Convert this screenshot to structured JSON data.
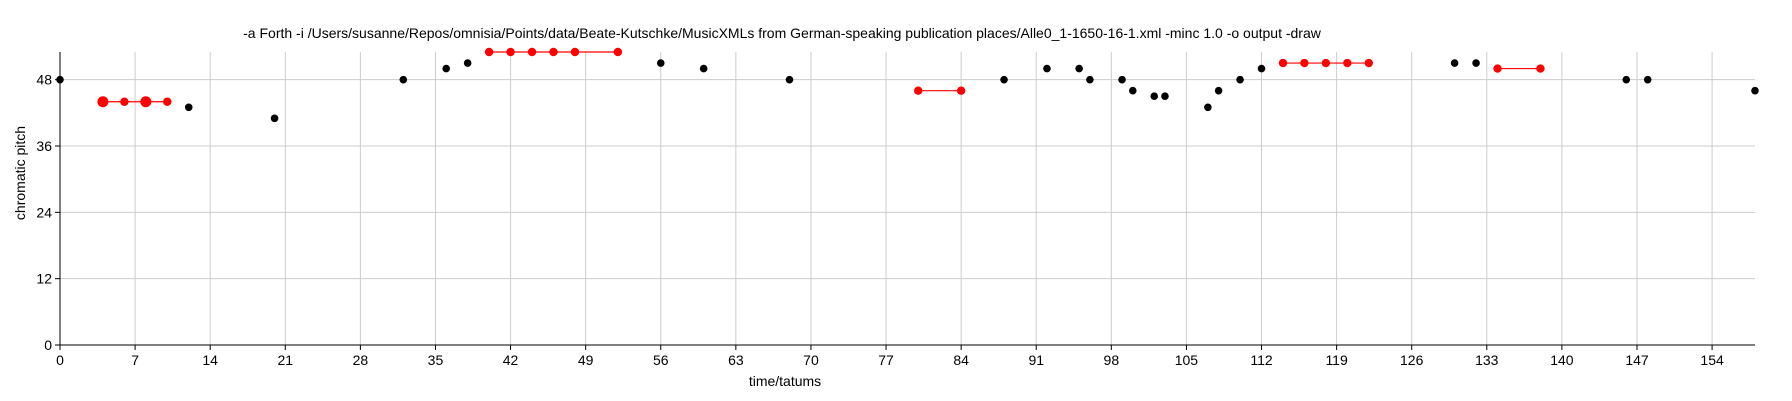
{
  "chart_data": {
    "type": "scatter",
    "title": "-a Forth -i /Users/susanne/Repos/omnisia/Points/data/Beate-Kutschke/MusicXMLs from German-speaking publication places/Alle0_1-1650-16-1.xml -minc 1.0 -o output -draw",
    "xlabel": "time/tatums",
    "ylabel": "chromatic pitch",
    "xlim": [
      0,
      158
    ],
    "ylim": [
      0,
      53
    ],
    "xticks": [
      0,
      7,
      14,
      21,
      28,
      35,
      42,
      49,
      56,
      63,
      70,
      77,
      84,
      91,
      98,
      105,
      112,
      119,
      126,
      133,
      140,
      147,
      154
    ],
    "yticks": [
      0,
      12,
      24,
      36,
      48
    ],
    "grid": true,
    "colors": {
      "notes": "#000000",
      "pattern": "#ff0000",
      "grid": "#cccccc"
    },
    "points": [
      [
        0,
        48
      ],
      [
        12,
        43
      ],
      [
        20,
        41
      ],
      [
        32,
        48
      ],
      [
        36,
        50
      ],
      [
        38,
        51
      ],
      [
        56,
        51
      ],
      [
        60,
        50
      ],
      [
        68,
        48
      ],
      [
        88,
        48
      ],
      [
        92,
        50
      ],
      [
        95,
        50
      ],
      [
        96,
        48
      ],
      [
        99,
        48
      ],
      [
        100,
        46
      ],
      [
        102,
        45
      ],
      [
        103,
        45
      ],
      [
        107,
        43
      ],
      [
        108,
        46
      ],
      [
        110,
        48
      ],
      [
        112,
        50
      ],
      [
        130,
        51
      ],
      [
        132,
        51
      ],
      [
        146,
        48
      ],
      [
        148,
        48
      ],
      [
        158,
        46
      ]
    ],
    "patterns": [
      {
        "x": [
          4,
          6,
          8,
          10
        ],
        "y": [
          44,
          44,
          44,
          44
        ],
        "emphasized": [
          4,
          8
        ]
      },
      {
        "x": [
          40,
          42,
          44,
          46,
          48,
          52
        ],
        "y": [
          53,
          53,
          53,
          53,
          53,
          53
        ],
        "emphasized": []
      },
      {
        "x": [
          80,
          84
        ],
        "y": [
          46,
          46
        ],
        "emphasized": []
      },
      {
        "x": [
          114,
          116,
          118,
          120,
          122
        ],
        "y": [
          51,
          51,
          51,
          51,
          51
        ],
        "emphasized": []
      },
      {
        "x": [
          134,
          138
        ],
        "y": [
          50,
          50
        ],
        "emphasized": []
      }
    ]
  }
}
